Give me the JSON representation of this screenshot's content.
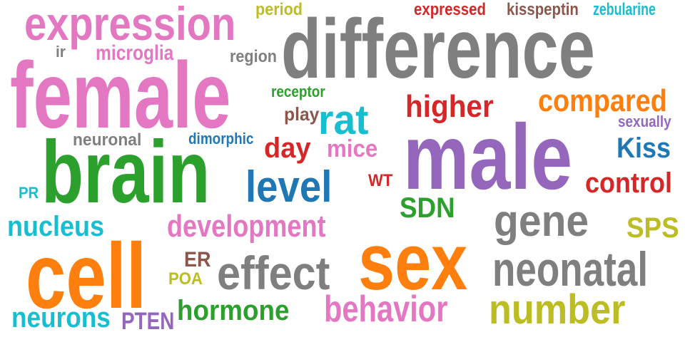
{
  "colors": {
    "gray": "#7f7f7f",
    "pink": "#e377c2",
    "purple": "#9467bd",
    "green": "#2ca02c",
    "orange": "#ff7f0e",
    "blue": "#1f77b4",
    "cyan": "#17becf",
    "olive": "#bcbd22",
    "red": "#d62728",
    "brown": "#8c564b"
  },
  "words": [
    {
      "text": "difference",
      "color": "#7f7f7f",
      "weight": 100
    },
    {
      "text": "female",
      "color": "#e377c2",
      "weight": 96
    },
    {
      "text": "male",
      "color": "#9467bd",
      "weight": 94
    },
    {
      "text": "sex",
      "color": "#ff7f0e",
      "weight": 90
    },
    {
      "text": "brain",
      "color": "#2ca02c",
      "weight": 88
    },
    {
      "text": "cell",
      "color": "#ff7f0e",
      "weight": 86
    },
    {
      "text": "expression",
      "color": "#e377c2",
      "weight": 70
    },
    {
      "text": "neonatal",
      "color": "#7f7f7f",
      "weight": 66
    },
    {
      "text": "effect",
      "color": "#7f7f7f",
      "weight": 62
    },
    {
      "text": "gene",
      "color": "#7f7f7f",
      "weight": 60
    },
    {
      "text": "number",
      "color": "#bcbd22",
      "weight": 58
    },
    {
      "text": "level",
      "color": "#1f77b4",
      "weight": 56
    },
    {
      "text": "rat",
      "color": "#17becf",
      "weight": 54
    },
    {
      "text": "behavior",
      "color": "#e377c2",
      "weight": 50
    },
    {
      "text": "compared",
      "color": "#ff7f0e",
      "weight": 44
    },
    {
      "text": "higher",
      "color": "#d62728",
      "weight": 42
    },
    {
      "text": "development",
      "color": "#e377c2",
      "weight": 42
    },
    {
      "text": "hormone",
      "color": "#2ca02c",
      "weight": 38
    },
    {
      "text": "neurons",
      "color": "#17becf",
      "weight": 38
    },
    {
      "text": "nucleus",
      "color": "#17becf",
      "weight": 36
    },
    {
      "text": "control",
      "color": "#d62728",
      "weight": 36
    },
    {
      "text": "Kiss",
      "color": "#1f77b4",
      "weight": 34
    },
    {
      "text": "SDN",
      "color": "#2ca02c",
      "weight": 32
    },
    {
      "text": "SPS",
      "color": "#bcbd22",
      "weight": 32
    },
    {
      "text": "day",
      "color": "#d62728",
      "weight": 30
    },
    {
      "text": "mice",
      "color": "#e377c2",
      "weight": 30
    },
    {
      "text": "PTEN",
      "color": "#9467bd",
      "weight": 28
    },
    {
      "text": "microglia",
      "color": "#e377c2",
      "weight": 26
    },
    {
      "text": "ER",
      "color": "#8c564b",
      "weight": 24
    },
    {
      "text": "play",
      "color": "#8c564b",
      "weight": 22
    },
    {
      "text": "neuronal",
      "color": "#7f7f7f",
      "weight": 22
    },
    {
      "text": "expressed",
      "color": "#d62728",
      "weight": 20
    },
    {
      "text": "kisspeptin",
      "color": "#8c564b",
      "weight": 20
    },
    {
      "text": "zebularine",
      "color": "#17becf",
      "weight": 20
    },
    {
      "text": "period",
      "color": "#bcbd22",
      "weight": 18
    },
    {
      "text": "region",
      "color": "#7f7f7f",
      "weight": 18
    },
    {
      "text": "sexually",
      "color": "#9467bd",
      "weight": 18
    },
    {
      "text": "POA",
      "color": "#bcbd22",
      "weight": 18
    },
    {
      "text": "dimorphic",
      "color": "#1f77b4",
      "weight": 16
    },
    {
      "text": "receptor",
      "color": "#2ca02c",
      "weight": 16
    },
    {
      "text": "WT",
      "color": "#d62728",
      "weight": 16
    },
    {
      "text": "ir",
      "color": "#7f7f7f",
      "weight": 16
    },
    {
      "text": "PR",
      "color": "#17becf",
      "weight": 16
    }
  ]
}
